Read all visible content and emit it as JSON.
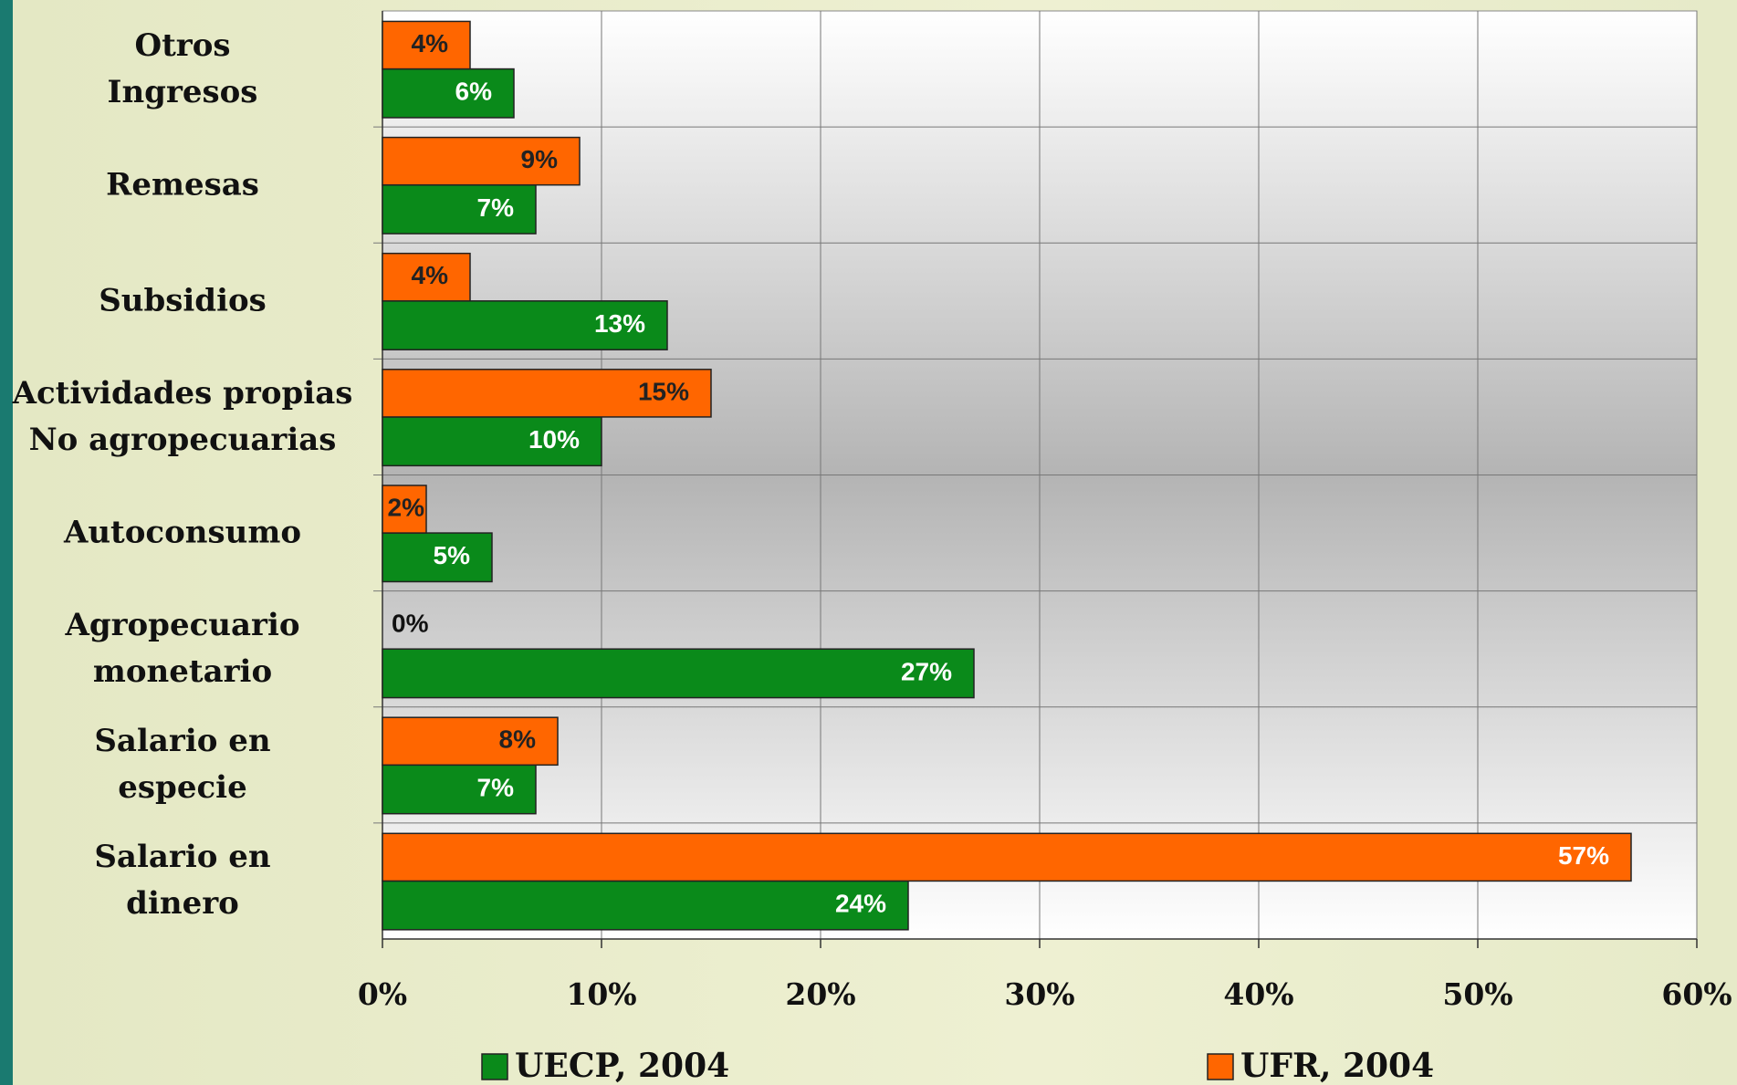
{
  "chart_data": {
    "type": "bar",
    "orientation": "horizontal",
    "categories": [
      "Otros\nIngresos",
      "Remesas",
      "Subsidios",
      "Actividades propias\nNo  agropecuarias",
      "Autoconsumo",
      "Agropecuario\nmonetario",
      "Salario en\nespecie",
      "Salario en\ndinero"
    ],
    "series": [
      {
        "name": "UECP, 2004",
        "color": "#0a8a1a",
        "values": [
          6,
          7,
          13,
          10,
          5,
          27,
          7,
          24
        ],
        "value_labels": [
          "6%",
          "7%",
          "13%",
          "10%",
          "5%",
          "27%",
          "7%",
          "24%"
        ]
      },
      {
        "name": "UFR, 2004",
        "color": "#ff6600",
        "values": [
          4,
          9,
          4,
          15,
          2,
          0,
          8,
          57
        ],
        "value_labels": [
          "4%",
          "9%",
          "4%",
          "15%",
          "2%",
          "0%",
          "8%",
          "57%"
        ]
      }
    ],
    "xlim": [
      0,
      60
    ],
    "xticks": [
      {
        "value": 0,
        "label": "0%"
      },
      {
        "value": 10,
        "label": "10%"
      },
      {
        "value": 20,
        "label": "20%"
      },
      {
        "value": 30,
        "label": "30%"
      },
      {
        "value": 40,
        "label": "40%"
      },
      {
        "value": 50,
        "label": "50%"
      },
      {
        "value": 60,
        "label": "60%"
      }
    ],
    "grid": true,
    "legend": "bottom"
  }
}
